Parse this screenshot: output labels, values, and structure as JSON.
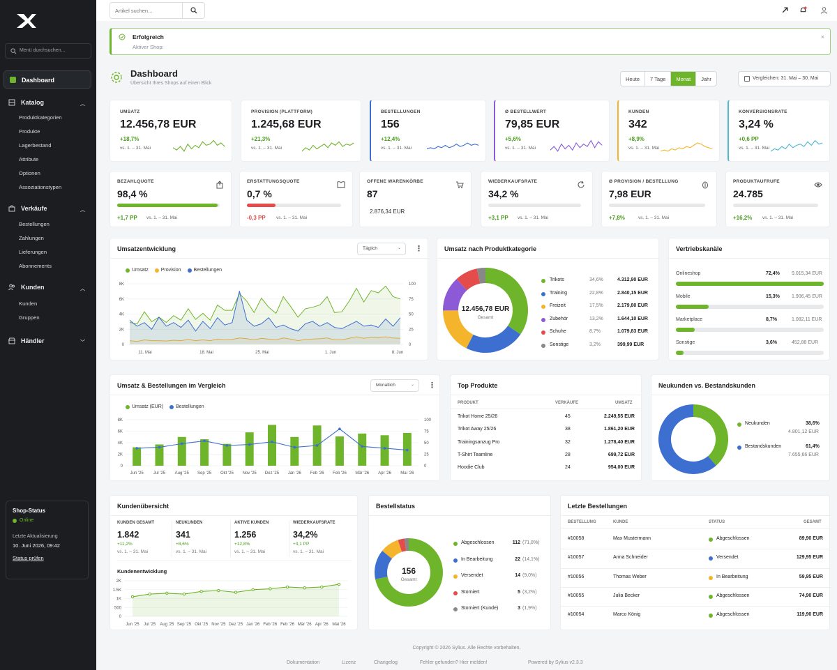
{
  "app": {
    "brand": "fanXXL",
    "search_placeholder": "Menü durchsuchen..."
  },
  "colors": {
    "accent": "#6fb52c",
    "blue": "#3d6fd1",
    "orange": "#f4b42b",
    "purple": "#8c5ad7",
    "red": "#e44b4b",
    "teal": "#4fb8cf",
    "gray": "#888888"
  },
  "sidebar": {
    "dashboard": "Dashboard",
    "katalog": {
      "label": "Katalog",
      "items": [
        "Produktkategorien",
        "Produkte",
        "Lagerbestand",
        "Attribute",
        "Optionen",
        "Assoziationstypen"
      ]
    },
    "verkaeufe": {
      "label": "Verkäufe",
      "items": [
        "Bestellungen",
        "Zahlungen",
        "Lieferungen",
        "Abonnements"
      ]
    },
    "kunden": {
      "label": "Kunden",
      "items": [
        "Kunden",
        "Gruppen"
      ]
    },
    "haendler": {
      "label": "Händler"
    },
    "status": {
      "title": "Shop-Status",
      "online": "Online",
      "last_label": "Letzte Aktualisierung",
      "last_value": "10. Juni 2026, 09:42",
      "check": "Status prüfen"
    }
  },
  "topbar": {
    "search_placeholder": "Artikel suchen..."
  },
  "alert": {
    "title": "Erfolgreich",
    "text": "Aktiver Shop:"
  },
  "page": {
    "title": "Dashboard",
    "subtitle": "Übersicht Ihres Shops auf einen Blick"
  },
  "periods": [
    "Heute",
    "7 Tage",
    "Monat",
    "Jahr"
  ],
  "compare": "Vergleichen: 31. Mai – 30. Mai",
  "kpi_top": [
    {
      "label": "UMSATZ",
      "value": "12.456,78 EUR",
      "change": "+18,7%",
      "period": "vs. 1. – 31. Mai",
      "color": "#6fb52c"
    },
    {
      "label": "PROVISION (PLATTFORM)",
      "value": "1.245,68 EUR",
      "change": "+21,3%",
      "period": "vs. 1. – 31. Mai",
      "color": "#6fb52c"
    },
    {
      "label": "BESTELLUNGEN",
      "value": "156",
      "change": "+12,4%",
      "period": "vs. 1. – 31. Mai",
      "color": "#3d6fd1"
    },
    {
      "label": "Ø BESTELLWERT",
      "value": "79,85 EUR",
      "change": "+5,6%",
      "period": "vs. 1. – 31. Mai",
      "color": "#8c5ad7"
    },
    {
      "label": "KUNDEN",
      "value": "342",
      "change": "+8,9%",
      "period": "vs. 1. – 31. Mai",
      "color": "#f4b42b"
    },
    {
      "label": "KONVERSIONSRATE",
      "value": "3,24 %",
      "change": "+0,6 PP",
      "period": "vs. 1. – 31. Mai",
      "color": "#4fb8cf"
    }
  ],
  "kpi_second": [
    {
      "label": "BEZAHLQUOTE",
      "value": "98,4 %",
      "change": "+1,7 PP",
      "period": "vs. 1. – 31. Mai",
      "progress": 0.98,
      "icon": "share-icon"
    },
    {
      "label": "ERSTATTUNGSQUOTE",
      "value": "0,7 %",
      "change": "-0,3 PP",
      "period": "vs. 1. – 31. Mai",
      "progress": 0.3,
      "icon": "book-icon"
    },
    {
      "label": "OFFENE WARENKÖRBE",
      "value": "87",
      "sub": "2.876,34 EUR",
      "icon": "cart-icon"
    },
    {
      "label": "WIEDERKAUFSRATE",
      "value": "34,2 %",
      "change": "+3,1 PP",
      "period": "vs. 1. – 31. Mai",
      "progress": 0,
      "icon": "refresh-icon"
    },
    {
      "label": "Ø PROVISION / BESTELLUNG",
      "value": "7,98 EUR",
      "change": "+7,8%",
      "period": "vs. 1. – 31. Mai",
      "progress": 0,
      "icon": "coin-icon"
    },
    {
      "label": "PRODUKTAUFRUFE",
      "value": "24.785",
      "change": "+16,2%",
      "period": "vs. 1. – 31. Mai",
      "progress": 0,
      "icon": "eye-icon"
    }
  ],
  "umsatzentwicklung": {
    "title": "Umsatzentwicklung",
    "select": "Täglich",
    "legend": [
      "Umsatz",
      "Provision",
      "Bestellungen"
    ]
  },
  "kategorie": {
    "title": "Umsatz nach Produktkategorie",
    "total": "12.456,78 EUR",
    "total_label": "Gesamt",
    "rows": [
      {
        "name": "Trikots",
        "pct": "34,6%",
        "val": "4.312,90 EUR",
        "color": "#6fb52c"
      },
      {
        "name": "Training",
        "pct": "22,8%",
        "val": "2.840,15 EUR",
        "color": "#3d6fd1"
      },
      {
        "name": "Freizeit",
        "pct": "17,5%",
        "val": "2.179,80 EUR",
        "color": "#f4b42b"
      },
      {
        "name": "Zubehör",
        "pct": "13,2%",
        "val": "1.644,10 EUR",
        "color": "#8c5ad7"
      },
      {
        "name": "Schuhe",
        "pct": "8,7%",
        "val": "1.079,83 EUR",
        "color": "#e44b4b"
      },
      {
        "name": "Sonstige",
        "pct": "3,2%",
        "val": "399,99 EUR",
        "color": "#888888"
      }
    ]
  },
  "vertrieb": {
    "title": "Vertriebskanäle",
    "rows": [
      {
        "name": "Onlineshop",
        "pct": "72,4%",
        "val": "9.015,34 EUR",
        "fraction": 0.724
      },
      {
        "name": "Mobile",
        "pct": "15,3%",
        "val": "1.906,45 EUR",
        "fraction": 0.153
      },
      {
        "name": "Marketplace",
        "pct": "8,7%",
        "val": "1.082,11 EUR",
        "fraction": 0.087
      },
      {
        "name": "Sonstige",
        "pct": "3,6%",
        "val": "452,88 EUR",
        "fraction": 0.036
      }
    ]
  },
  "vergleich": {
    "title": "Umsatz & Bestellungen im Vergleich",
    "select": "Monatlich",
    "legend": [
      "Umsatz (EUR)",
      "Bestellungen"
    ]
  },
  "top": {
    "title": "Top Produkte",
    "cols": [
      "PRODUKT",
      "VERKÄUFE",
      "UMSATZ"
    ],
    "rows": [
      [
        "Trikot Home 25/26",
        "45",
        "2.249,55 EUR"
      ],
      [
        "Trikot Away 25/26",
        "38",
        "1.861,20 EUR"
      ],
      [
        "Trainingsanzug Pro",
        "32",
        "1.278,40 EUR"
      ],
      [
        "T-Shirt Teamline",
        "28",
        "699,72 EUR"
      ],
      [
        "Hoodie Club",
        "24",
        "954,00 EUR"
      ]
    ]
  },
  "neukunden": {
    "title": "Neukunden vs. Bestandskunden",
    "rows": [
      {
        "name": "Neukunden",
        "pct": "38,6%",
        "val": "4.801,12 EUR",
        "color": "#6fb52c"
      },
      {
        "name": "Bestandskunden",
        "pct": "61,4%",
        "val": "7.655,66 EUR",
        "color": "#3d6fd1"
      }
    ]
  },
  "kundenuebersicht": {
    "title": "Kundenübersicht",
    "stats": [
      {
        "label": "KUNDEN GESAMT",
        "value": "1.842",
        "change": "+11,2%",
        "period": "vs. 1. – 31. Mai"
      },
      {
        "label": "NEUKUNDEN",
        "value": "341",
        "change": "+8,6%",
        "period": "vs. 1. – 31. Mai"
      },
      {
        "label": "AKTIVE KUNDEN",
        "value": "1.256",
        "change": "+12,8%",
        "period": "vs. 1. – 31. Mai"
      },
      {
        "label": "WIEDERKAUFSRATE",
        "value": "34,2%",
        "change": "+3,1 PP",
        "period": "vs. 1. – 31. Mai"
      }
    ],
    "chart_title": "Kundenentwicklung"
  },
  "bestellstatus": {
    "title": "Bestellstatus",
    "total": "156",
    "total_label": "Gesamt",
    "rows": [
      {
        "name": "Abgeschlossen",
        "n": "112",
        "pct": "(71,8%)",
        "color": "#6fb52c"
      },
      {
        "name": "In Bearbeitung",
        "n": "22",
        "pct": "(14,1%)",
        "color": "#3d6fd1"
      },
      {
        "name": "Versendet",
        "n": "14",
        "pct": "(9,0%)",
        "color": "#f4b42b"
      },
      {
        "name": "Storniert",
        "n": "5",
        "pct": "(3,2%)",
        "color": "#e44b4b"
      },
      {
        "name": "Storniert (Kunde)",
        "n": "3",
        "pct": "(1,9%)",
        "color": "#888888"
      }
    ]
  },
  "letzte": {
    "title": "Letzte Bestellungen",
    "cols": [
      "BESTELLUNG",
      "KUNDE",
      "STATUS",
      "GESAMT"
    ],
    "rows": [
      {
        "id": "#10058",
        "name": "Max Mustermann",
        "status": "Abgeschlossen",
        "color": "#6fb52c",
        "total": "89,90 EUR"
      },
      {
        "id": "#10057",
        "name": "Anna Schneider",
        "status": "Versendet",
        "color": "#3d6fd1",
        "total": "129,95 EUR"
      },
      {
        "id": "#10056",
        "name": "Thomas Weber",
        "status": "In Bearbeitung",
        "color": "#f4b42b",
        "total": "59,95 EUR"
      },
      {
        "id": "#10055",
        "name": "Julia Becker",
        "status": "Abgeschlossen",
        "color": "#6fb52c",
        "total": "74,90 EUR"
      },
      {
        "id": "#10054",
        "name": "Marco König",
        "status": "Abgeschlossen",
        "color": "#6fb52c",
        "total": "119,90 EUR"
      }
    ]
  },
  "footer": {
    "copyright": "Copyright © 2026 Sylius. Alle Rechte vorbehalten.",
    "links": [
      "Dokumentation",
      "Lizenz",
      "Changelog",
      "Fehler gefunden? Hier melden!",
      "Powered by Sylius v2.3.3"
    ]
  },
  "chart_data": [
    {
      "type": "line",
      "title": "Umsatzentwicklung",
      "x_ticks": [
        "11. Mai",
        "18. Mai",
        "25. Mai",
        "1. Jun",
        "8. Jun"
      ],
      "y_left_ticks": [
        "0",
        "2K",
        "4K",
        "6K",
        "8K"
      ],
      "y_right_ticks": [
        "0",
        "25",
        "50",
        "75",
        "100"
      ],
      "series": [
        {
          "name": "Umsatz",
          "axis": "left",
          "values": [
            2900,
            2700,
            4300,
            3000,
            3600,
            2900,
            3800,
            3200,
            4700,
            3300,
            4100,
            3200,
            5200,
            4500,
            4500,
            6700,
            5700,
            4200,
            6100,
            4900,
            4100,
            6300,
            5000,
            3600,
            4700,
            4900,
            5200,
            6300,
            4200,
            4300,
            5700,
            7400,
            5600,
            7100,
            6800,
            7700,
            6300,
            6000
          ]
        },
        {
          "name": "Provision",
          "axis": "left",
          "values": [
            500,
            400,
            600,
            500,
            500,
            450,
            550,
            500,
            650,
            500,
            600,
            500,
            700,
            600,
            650,
            850,
            750,
            600,
            800,
            700,
            600,
            850,
            700,
            500,
            650,
            700,
            750,
            850,
            600,
            600,
            800,
            1000,
            800,
            950,
            900,
            1000,
            850,
            800
          ]
        },
        {
          "name": "Bestellungen",
          "axis": "right",
          "values": [
            40,
            30,
            36,
            25,
            45,
            30,
            36,
            28,
            40,
            22,
            38,
            26,
            44,
            32,
            36,
            88,
            40,
            30,
            34,
            44,
            28,
            32,
            26,
            22,
            34,
            38,
            30,
            36,
            28,
            26,
            32,
            38,
            30,
            32,
            28,
            42,
            30,
            44
          ]
        }
      ]
    },
    {
      "type": "bar",
      "title": "Umsatz & Bestellungen im Vergleich",
      "categories": [
        "Jun '25",
        "Jul '25",
        "Aug '25",
        "Sep '25",
        "Okt '25",
        "Nov '25",
        "Dez '25",
        "Jan '26",
        "Feb '26",
        "Feb '26",
        "Mär '26",
        "Apr '26",
        "Mai '26"
      ],
      "y_left_ticks": [
        "0",
        "2K",
        "4K",
        "6K",
        "8K"
      ],
      "y_right_ticks": [
        "0",
        "25",
        "50",
        "75",
        "100"
      ],
      "series": [
        {
          "name": "Umsatz (EUR)",
          "axis": "left",
          "values": [
            3200,
            3700,
            5000,
            4600,
            3800,
            5800,
            7100,
            5000,
            7000,
            5100,
            5600,
            5300,
            5700
          ]
        },
        {
          "name": "Bestellungen",
          "axis": "right",
          "values": [
            38,
            40,
            48,
            54,
            44,
            46,
            52,
            40,
            44,
            80,
            42,
            38,
            34
          ]
        }
      ]
    },
    {
      "type": "line",
      "title": "Kundenentwicklung",
      "x_ticks": [
        "Jun '25",
        "Jul '25",
        "Aug '25",
        "Sep '25",
        "Okt '25",
        "Nov '25",
        "Dez '25",
        "Jan '26",
        "Feb '26",
        "Feb '26",
        "Mär '26",
        "Apr '26",
        "Mai '26"
      ],
      "y_ticks": [
        "0",
        "500",
        "1K",
        "1.5K",
        "2K"
      ],
      "series": [
        {
          "name": "Kundenentwicklung",
          "values": [
            1100,
            1250,
            1300,
            1250,
            1400,
            1450,
            1350,
            1500,
            1550,
            1650,
            1600,
            1650,
            1800
          ]
        }
      ]
    },
    {
      "type": "pie",
      "title": "Umsatz nach Produktkategorie",
      "categories": [
        "Trikots",
        "Training",
        "Freizeit",
        "Zubehör",
        "Schuhe",
        "Sonstige"
      ],
      "values": [
        34.6,
        22.8,
        17.5,
        13.2,
        8.7,
        3.2
      ]
    },
    {
      "type": "pie",
      "title": "Neukunden vs. Bestandskunden",
      "categories": [
        "Neukunden",
        "Bestandskunden"
      ],
      "values": [
        38.6,
        61.4
      ]
    },
    {
      "type": "pie",
      "title": "Bestellstatus",
      "categories": [
        "Abgeschlossen",
        "In Bearbeitung",
        "Versendet",
        "Storniert",
        "Storniert (Kunde)"
      ],
      "values": [
        112,
        22,
        14,
        5,
        3
      ]
    }
  ]
}
